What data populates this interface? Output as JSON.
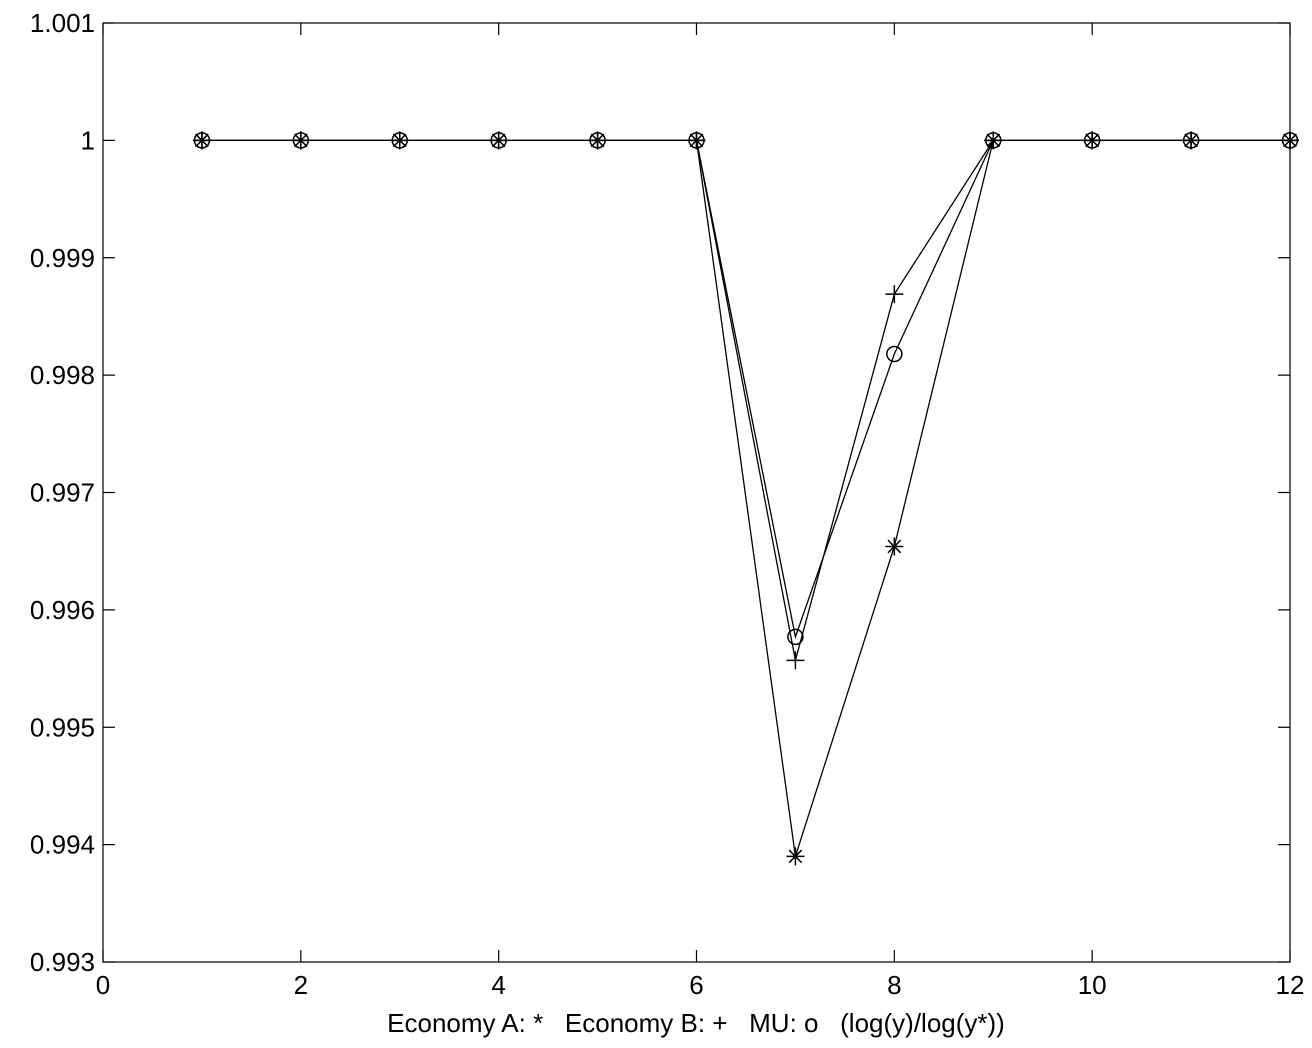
{
  "chart_data": {
    "type": "line",
    "xlabel": "Economy A: *   Economy B: +   MU: o   (log(y)/log(y*))",
    "x": [
      1,
      2,
      3,
      4,
      5,
      6,
      7,
      8,
      9,
      10,
      11,
      12
    ],
    "series": [
      {
        "name": "Economy A",
        "color": "#000000",
        "marker": "star",
        "values": [
          1,
          1,
          1,
          1,
          1,
          1,
          0.9939,
          0.99654,
          1,
          1,
          1,
          1
        ]
      },
      {
        "name": "Economy B",
        "color": "#000000",
        "marker": "plus",
        "values": [
          1,
          1,
          1,
          1,
          1,
          1,
          0.99557,
          0.99869,
          1,
          1,
          1,
          1
        ]
      },
      {
        "name": "MU",
        "color": "#000000",
        "marker": "circle",
        "values": [
          1,
          1,
          1,
          1,
          1,
          1,
          0.99577,
          0.99818,
          1,
          1,
          1,
          1
        ]
      }
    ],
    "xlim": [
      0,
      12
    ],
    "xticks": [
      0,
      2,
      4,
      6,
      8,
      10,
      12
    ],
    "ylim": [
      0.993,
      1.001
    ],
    "yticks": [
      0.993,
      0.994,
      0.995,
      0.996,
      0.997,
      0.998,
      0.999,
      1,
      1.001
    ],
    "grid": false
  }
}
